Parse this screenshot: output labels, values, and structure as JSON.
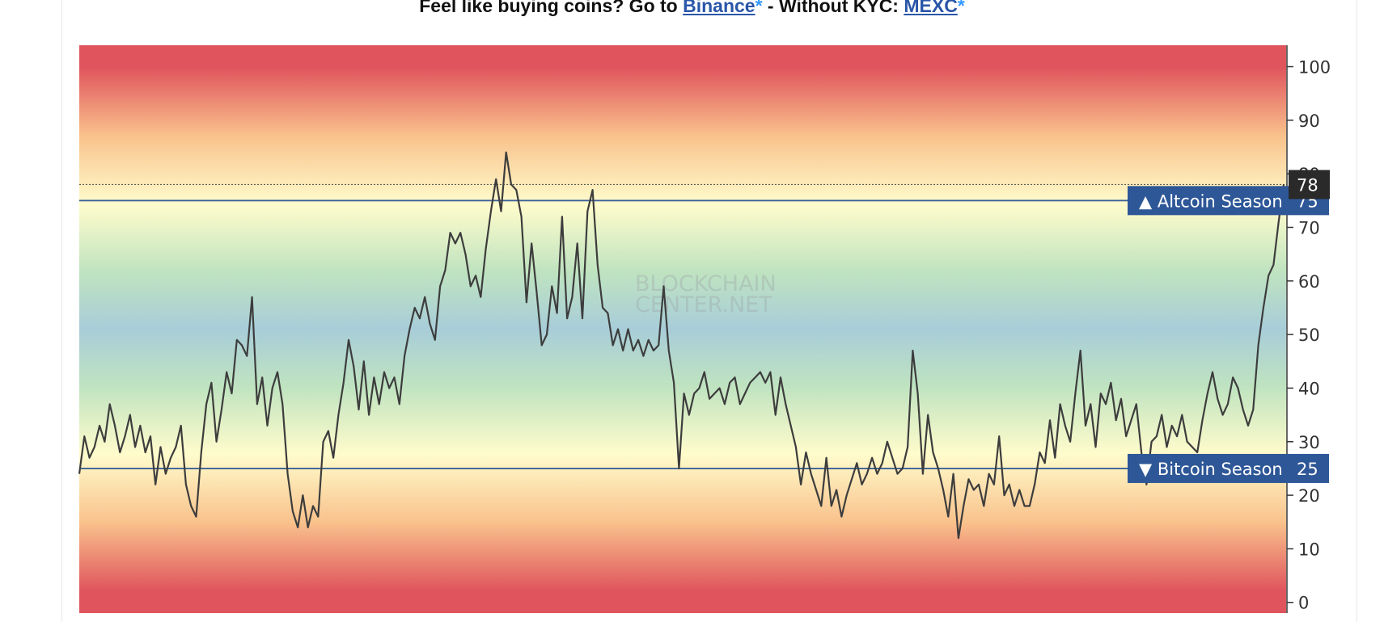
{
  "header": {
    "prefix": "Feel like buying coins? Go to ",
    "link1": "Binance",
    "star1": "*",
    "middle": " - Without KYC: ",
    "link2": "MEXC",
    "star2": "*"
  },
  "watermark": {
    "line1": "BLOCKCHAIN",
    "line2": "CENTER.NET"
  },
  "colors": {
    "line": "#3d3d3d",
    "threshold": "#3a5f98",
    "tag_bg": "#2e5797",
    "current_bg": "#2a2a2a",
    "band_red": "#e0555d",
    "band_orange": "#f9c28c",
    "band_yellow": "#fffccc",
    "band_green": "#bfe3c0",
    "band_blue": "#a8cdd9"
  },
  "chart_data": {
    "type": "line",
    "ylim": [
      -2,
      104
    ],
    "yticks": [
      "0",
      "10",
      "20",
      "30",
      "40",
      "50",
      "60",
      "70",
      "80",
      "90",
      "100"
    ],
    "current_value": "78",
    "thresholds": [
      {
        "label": "▲ Altcoin Season",
        "value": "75"
      },
      {
        "label": "▼ Bitcoin Season",
        "value": "25"
      }
    ],
    "series": [
      {
        "values": [
          24,
          31,
          27,
          29,
          33,
          30,
          37,
          33,
          28,
          31,
          35,
          29,
          33,
          28,
          31,
          22,
          29,
          24,
          27,
          29,
          33,
          22,
          18,
          16,
          28,
          37,
          41,
          30,
          36,
          43,
          39,
          49,
          48,
          46,
          57,
          37,
          42,
          33,
          40,
          43,
          37,
          24,
          17,
          14,
          20,
          14,
          18,
          16,
          30,
          32,
          27,
          35,
          41,
          49,
          44,
          36,
          45,
          35,
          42,
          37,
          43,
          40,
          42,
          37,
          46,
          51,
          55,
          53,
          57,
          52,
          49,
          59,
          62,
          69,
          67,
          69,
          65,
          59,
          61,
          57,
          66,
          73,
          79,
          73,
          84,
          78,
          77,
          72,
          56,
          67,
          58,
          48,
          50,
          59,
          54,
          72,
          53,
          57,
          67,
          53,
          73,
          77,
          63,
          55,
          54,
          48,
          51,
          47,
          51,
          47,
          49,
          46,
          49,
          47,
          48,
          59,
          47,
          41,
          25,
          39,
          35,
          39,
          40,
          43,
          38,
          39,
          40,
          37,
          41,
          42,
          37,
          39,
          41,
          42,
          43,
          41,
          43,
          35,
          42,
          37,
          33,
          29,
          22,
          28,
          24,
          21,
          18,
          27,
          18,
          21,
          16,
          20,
          23,
          26,
          22,
          24,
          27,
          24,
          26,
          30,
          27,
          24,
          25,
          29,
          47,
          39,
          24,
          35,
          28,
          25,
          21,
          16,
          24,
          12,
          18,
          23,
          21,
          22,
          18,
          24,
          22,
          31,
          20,
          22,
          18,
          21,
          18,
          18,
          22,
          28,
          26,
          34,
          27,
          37,
          33,
          30,
          39,
          47,
          33,
          37,
          29,
          39,
          37,
          41,
          34,
          38,
          31,
          34,
          37,
          28,
          22,
          30,
          31,
          35,
          29,
          33,
          31,
          35,
          30,
          29,
          28,
          34,
          39,
          43,
          38,
          35,
          37,
          42,
          40,
          36,
          33,
          36,
          48,
          55,
          61,
          63,
          71,
          78
        ]
      }
    ]
  }
}
